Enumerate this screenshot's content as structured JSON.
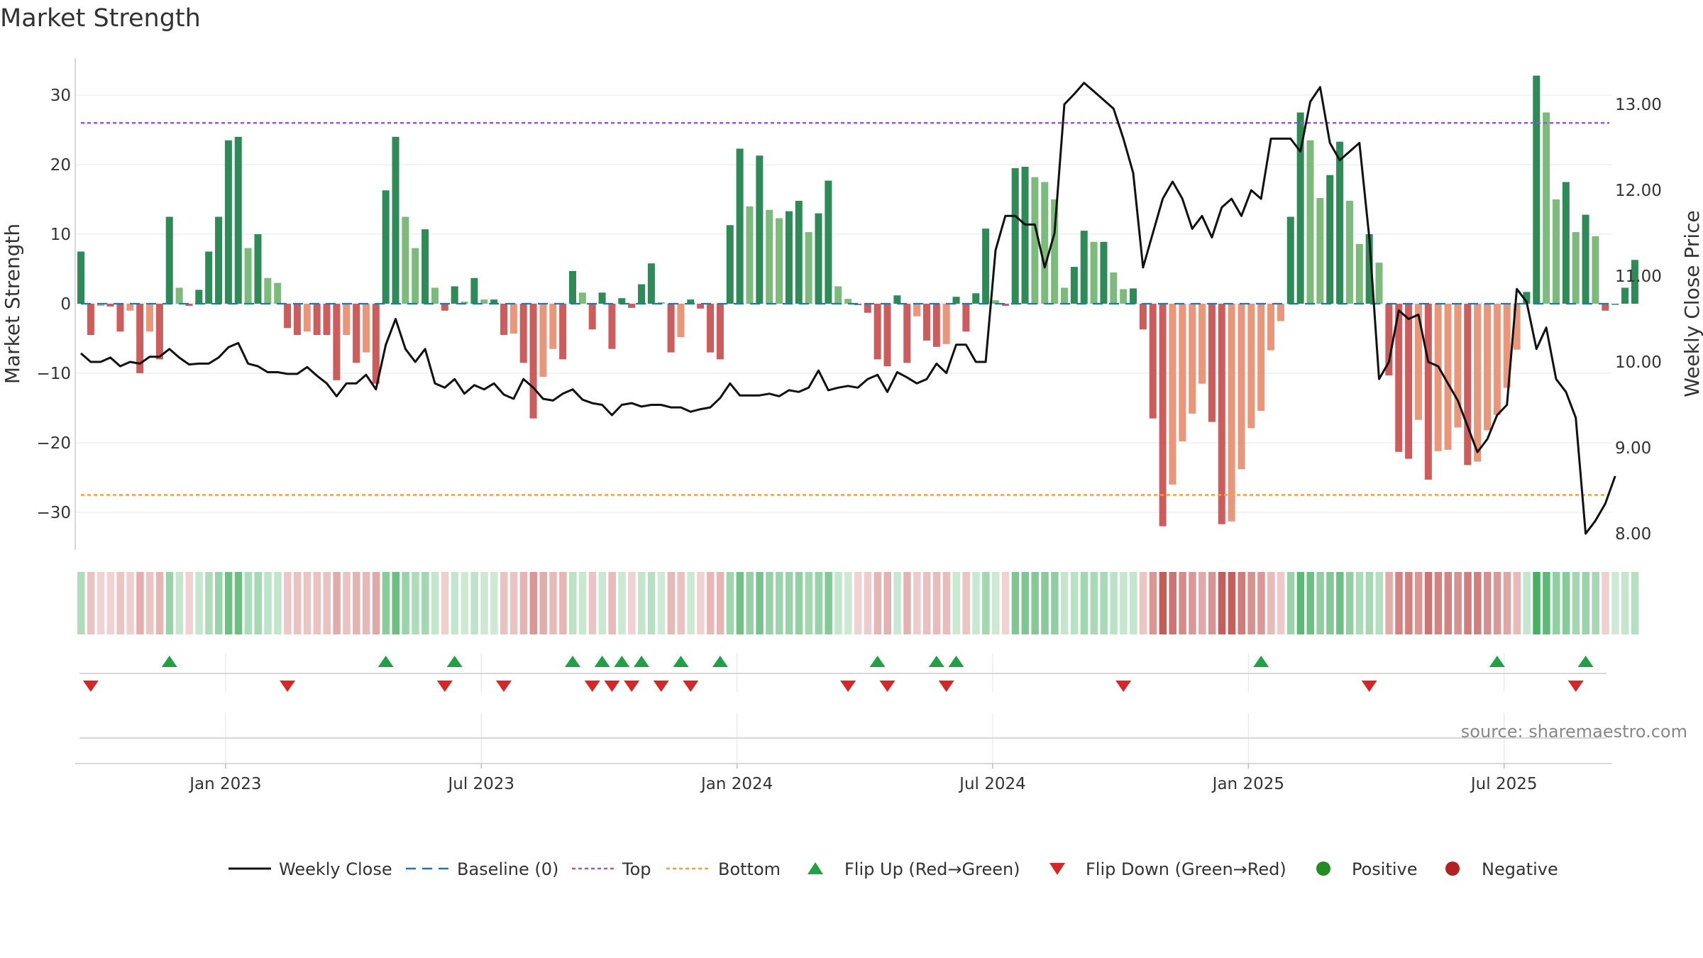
{
  "title": "Market Strength",
  "source": "source: sharemaestro.com",
  "chart_data": {
    "type": "bar",
    "ylabel_left": "Market Strength",
    "ylabel_right": "Weekly Close Price",
    "y_left_ticks": [
      30,
      20,
      10,
      0,
      -10,
      -20,
      -30
    ],
    "y_left_tick_labels": [
      "30",
      "20",
      "10",
      "0",
      "−10",
      "−20",
      "−30"
    ],
    "y_left_range": [
      -35.5,
      35
    ],
    "y_right_ticks": [
      13,
      12,
      11,
      10,
      9,
      8
    ],
    "y_right_tick_labels": [
      "13.00",
      "12.00",
      "11.00",
      "10.00",
      "9.00",
      "8.00"
    ],
    "y_right_range": [
      7.7,
      13.4
    ],
    "x_tick_labels": [
      "Jan 2023",
      "Jul 2023",
      "Jan 2024",
      "Jul 2024",
      "Jan 2025",
      "Jul 2025"
    ],
    "x_tick_weeks": [
      15,
      41,
      67,
      93,
      119,
      145
    ],
    "top_level": 26,
    "bottom_level": -27.5,
    "baseline": 0,
    "strength": [
      7.5,
      -4.5,
      -0.3,
      -0.4,
      -4,
      -1,
      -10,
      -4,
      -8,
      12.5,
      2.3,
      -0.3,
      2,
      7.5,
      12.5,
      23.5,
      24,
      8,
      10,
      3.7,
      3,
      -3.5,
      -4.5,
      -4,
      -4.5,
      -4.5,
      -11,
      -4.5,
      -8.5,
      -7,
      -11.5,
      16.3,
      24,
      12.5,
      8,
      10.7,
      2.3,
      -1,
      2.5,
      0.3,
      3.7,
      0.6,
      0.6,
      -4.5,
      -4.3,
      -8.5,
      -16.5,
      -10.5,
      -6.5,
      -8,
      4.7,
      1.6,
      -3.7,
      1.6,
      -6.5,
      0.8,
      -0.6,
      2.8,
      5.8,
      0.2,
      -7,
      -4.8,
      0.6,
      -0.7,
      -7,
      -8,
      11.3,
      22.3,
      14,
      21.3,
      13.5,
      12.3,
      13.3,
      14.8,
      10.3,
      13,
      17.7,
      2.5,
      0.7,
      -0.2,
      -1.3,
      -8,
      -9,
      1.2,
      -8.5,
      -1.8,
      -5.3,
      -6.2,
      -5.8,
      1,
      -4,
      1.5,
      10.8,
      0.5,
      -0.3,
      19.5,
      19.7,
      18.2,
      17.5,
      15,
      2.3,
      5.3,
      10.5,
      8.9,
      8.9,
      4.5,
      2.1,
      2.2,
      -3.7,
      -16.5,
      -32,
      -26,
      -19.8,
      -15.8,
      -11.5,
      -17,
      -31.7,
      -31.3,
      -23.8,
      -17.9,
      -15.4,
      -6.7,
      -2.5,
      12.5,
      27.5,
      23.5,
      15.2,
      18.5,
      23.3,
      14.8,
      8.6,
      10,
      5.9,
      -10.3,
      -21.3,
      -22.3,
      -16.7,
      -25.3,
      -21.2,
      -21,
      -17.8,
      -23.2,
      -22.7,
      -18.2,
      -16,
      -12.1,
      -6.6,
      1.7,
      32.8,
      27.5,
      15,
      17.5,
      10.3,
      12.8,
      9.7,
      -1,
      0,
      2.3,
      6.3
    ],
    "weekly_close": [
      10.1,
      10,
      10,
      10.05,
      9.95,
      10,
      9.98,
      10.06,
      10.06,
      10.15,
      10.05,
      9.97,
      9.98,
      9.98,
      10.05,
      10.17,
      10.22,
      9.98,
      9.95,
      9.88,
      9.88,
      9.86,
      9.86,
      9.94,
      9.84,
      9.75,
      9.6,
      9.75,
      9.75,
      9.85,
      9.68,
      10.2,
      10.5,
      10.15,
      10,
      10.15,
      9.75,
      9.7,
      9.8,
      9.63,
      9.73,
      9.68,
      9.75,
      9.62,
      9.57,
      9.8,
      9.7,
      9.57,
      9.55,
      9.63,
      9.68,
      9.56,
      9.52,
      9.5,
      9.38,
      9.5,
      9.52,
      9.48,
      9.5,
      9.5,
      9.47,
      9.47,
      9.42,
      9.45,
      9.47,
      9.58,
      9.75,
      9.61,
      9.61,
      9.61,
      9.63,
      9.6,
      9.67,
      9.65,
      9.7,
      9.9,
      9.67,
      9.7,
      9.72,
      9.7,
      9.8,
      9.85,
      9.65,
      9.88,
      9.82,
      9.75,
      9.8,
      9.98,
      9.87,
      10.2,
      10.2,
      10,
      10,
      11.3,
      11.7,
      11.7,
      11.6,
      11.6,
      11.1,
      11.5,
      13,
      13.12,
      13.25,
      13.15,
      13.05,
      12.95,
      12.6,
      12.2,
      11.1,
      11.5,
      11.9,
      12.1,
      11.9,
      11.55,
      11.7,
      11.45,
      11.8,
      11.9,
      11.7,
      12,
      11.9,
      12.6,
      12.6,
      12.6,
      12.45,
      13.03,
      13.2,
      12.55,
      12.35,
      12.45,
      12.55,
      11.45,
      9.8,
      10,
      10.6,
      10.5,
      10.55,
      10,
      9.95,
      9.75,
      9.55,
      9.25,
      8.95,
      9.1,
      9.38,
      9.5,
      10.85,
      10.7,
      10.15,
      10.4,
      9.8,
      9.65,
      9.35,
      8.0,
      8.15,
      8.35,
      8.67
    ],
    "flip_up_weeks": [
      9,
      31,
      38,
      50,
      53,
      55,
      57,
      61,
      65,
      81,
      87,
      89,
      120,
      144,
      153
    ],
    "flip_down_weeks": [
      1,
      21,
      37,
      43,
      52,
      54,
      56,
      59,
      62,
      78,
      82,
      88,
      106,
      131,
      152
    ],
    "legend": [
      "Weekly Close",
      "Baseline (0)",
      "Top",
      "Bottom",
      "Flip Up (Red→Green)",
      "Flip Down (Green→Red)",
      "Positive",
      "Negative"
    ],
    "colors": {
      "strong_green": "#2e8b57",
      "light_green": "#7dbb7d",
      "strong_red": "#cd5c5c",
      "light_red": "#e9967a",
      "line": "#111111",
      "top": "#9b59d0",
      "bottom": "#f0a040",
      "baseline": "#1f77b4",
      "flip_up": "#22a045",
      "flip_down": "#d62728",
      "positive": "#228b22",
      "negative": "#b22222"
    }
  }
}
